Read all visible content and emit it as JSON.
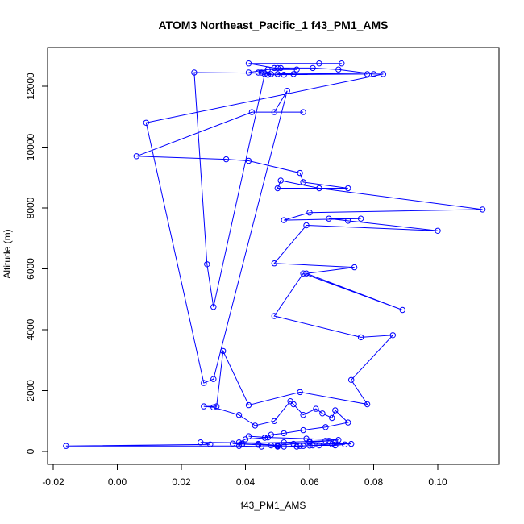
{
  "chart_data": {
    "type": "line",
    "title": "ATOM3 Northeast_Pacific_1 f43_PM1_AMS",
    "xlabel": "f43_PM1_AMS",
    "ylabel": "Altitude (m)",
    "xlim": [
      -0.02,
      0.12
    ],
    "ylim": [
      -300,
      13200
    ],
    "x_ticks": [
      -0.02,
      0.0,
      0.02,
      0.04,
      0.06,
      0.08,
      0.1
    ],
    "x_tick_labels": [
      "-0.02",
      "0.00",
      "0.02",
      "0.04",
      "0.06",
      "0.08",
      "0.10"
    ],
    "y_ticks": [
      0,
      2000,
      4000,
      6000,
      8000,
      10000,
      12000
    ],
    "y_tick_labels": [
      "0",
      "2000",
      "4000",
      "6000",
      "8000",
      "10000",
      "12000"
    ],
    "grid": false,
    "series": [
      {
        "color": "#0000ff",
        "marker": "open-circle",
        "x": [
          0.07,
          0.063,
          0.041,
          0.049,
          0.051,
          0.056,
          0.047,
          0.044,
          0.045,
          0.055,
          0.05,
          0.052,
          0.047,
          0.078,
          0.024,
          0.028,
          0.03,
          0.046,
          0.048,
          0.041,
          0.05,
          0.061,
          0.069,
          0.08,
          0.083,
          0.009,
          0.027,
          0.03,
          0.053,
          0.049,
          0.058,
          0.042,
          0.006,
          0.034,
          0.041,
          0.057,
          0.058,
          0.072,
          0.05,
          0.051,
          0.063,
          0.114,
          0.06,
          0.052,
          0.076,
          0.066,
          0.072,
          0.1,
          0.059,
          0.049,
          0.074,
          0.059,
          0.089,
          0.058,
          0.049,
          0.076,
          0.086,
          0.073,
          0.078,
          0.057,
          0.041,
          0.033,
          0.031,
          0.027,
          0.03,
          0.038,
          0.043,
          0.049,
          0.054,
          0.055,
          0.058,
          0.062,
          0.064,
          0.067,
          0.068,
          0.072,
          0.065,
          0.058,
          0.052,
          0.048,
          0.046,
          0.04,
          0.038,
          0.044,
          0.05,
          0.055,
          0.06,
          0.066,
          0.068,
          0.073,
          0.026,
          0.029,
          -0.016,
          0.038,
          0.045,
          0.05,
          0.057,
          0.06,
          0.063,
          0.068,
          0.071,
          0.067,
          0.061,
          0.058,
          0.056,
          0.052,
          0.05,
          0.048,
          0.044,
          0.039,
          0.036,
          0.052,
          0.06,
          0.065,
          0.069,
          0.059,
          0.047,
          0.041
        ]
      }
    ],
    "y": [
      12750,
      12750,
      12750,
      12600,
      12600,
      12550,
      12550,
      12450,
      12450,
      12400,
      12400,
      12380,
      12380,
      12400,
      12450,
      6150,
      4750,
      12400,
      12400,
      12450,
      12600,
      12600,
      12550,
      12400,
      12400,
      10800,
      2250,
      2380,
      11850,
      11150,
      11150,
      11150,
      9700,
      9600,
      9550,
      9150,
      8850,
      8650,
      8650,
      8900,
      8650,
      7950,
      7850,
      7600,
      7650,
      7650,
      7580,
      7250,
      7430,
      6180,
      6050,
      5850,
      4650,
      5850,
      4450,
      3750,
      3820,
      2350,
      1550,
      1950,
      1520,
      3300,
      1480,
      1480,
      1450,
      1200,
      850,
      1000,
      1650,
      1550,
      1200,
      1400,
      1250,
      1100,
      1350,
      950,
      800,
      700,
      600,
      550,
      450,
      400,
      300,
      250,
      200,
      250,
      300,
      350,
      300,
      250,
      300,
      230,
      180,
      180,
      160,
      160,
      180,
      190,
      200,
      200,
      230,
      240,
      200,
      180,
      160,
      160,
      180,
      200,
      220,
      240,
      260,
      300,
      330,
      350,
      380,
      420,
      460,
      500
    ]
  }
}
